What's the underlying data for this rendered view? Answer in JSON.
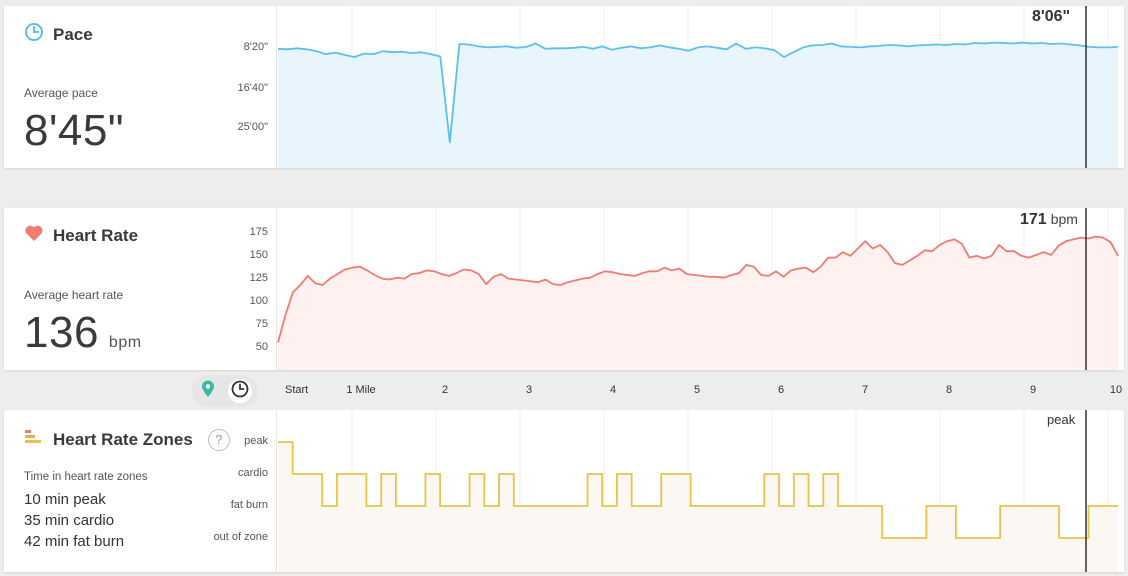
{
  "pace": {
    "title": "Pace",
    "avg_label": "Average pace",
    "avg_value": "8'45\"",
    "yticks": [
      "8'20\"",
      "16'40\"",
      "25'00\""
    ],
    "peak_readout": "8'06\"",
    "series_minutes_per_mile": [
      8.5,
      8.6,
      8.4,
      8.6,
      9.0,
      9.6,
      9.3,
      9.8,
      10.2,
      9.5,
      9.6,
      9.0,
      9.2,
      9.1,
      9.4,
      9.2,
      9.6,
      10.1,
      28.0,
      7.5,
      7.6,
      8.0,
      8.2,
      8.1,
      8.0,
      8.3,
      8.1,
      7.4,
      8.5,
      8.4,
      8.4,
      8.3,
      8.1,
      8.5,
      8.0,
      8.7,
      8.3,
      8.0,
      8.4,
      8.2,
      7.8,
      8.2,
      8.5,
      8.9,
      8.2,
      8.0,
      8.3,
      8.6,
      7.4,
      8.5,
      8.2,
      8.4,
      8.8,
      10.2,
      9.2,
      8.2,
      7.8,
      7.7,
      7.4,
      8.0,
      8.1,
      8.2,
      8.0,
      7.9,
      7.7,
      7.8,
      8.0,
      7.8,
      7.7,
      7.6,
      7.7,
      7.5,
      7.6,
      7.3,
      7.4,
      7.2,
      7.3,
      7.4,
      7.2,
      7.4,
      7.3,
      7.5,
      7.4,
      7.6,
      7.8,
      8.1,
      8.2,
      8.2,
      8.1
    ]
  },
  "heart_rate": {
    "title": "Heart Rate",
    "avg_label": "Average heart rate",
    "avg_value": "136",
    "avg_unit": "bpm",
    "yticks": [
      "175",
      "150",
      "125",
      "100",
      "75",
      "50"
    ],
    "peak_readout": "171",
    "peak_unit": "bpm",
    "series_bpm": [
      55,
      85,
      110,
      118,
      128,
      120,
      118,
      125,
      130,
      135,
      137,
      138,
      134,
      129,
      125,
      124,
      126,
      125,
      130,
      131,
      134,
      133,
      130,
      128,
      131,
      135,
      134,
      130,
      119,
      127,
      130,
      125,
      124,
      123,
      122,
      121,
      124,
      119,
      118,
      121,
      123,
      125,
      126,
      130,
      133,
      132,
      130,
      129,
      128,
      131,
      133,
      133,
      137,
      134,
      136,
      130,
      129,
      128,
      127,
      127,
      126,
      129,
      131,
      140,
      138,
      129,
      128,
      133,
      127,
      134,
      136,
      137,
      132,
      138,
      148,
      148,
      154,
      150,
      158,
      166,
      158,
      162,
      154,
      142,
      140,
      145,
      150,
      156,
      155,
      162,
      166,
      168,
      163,
      148,
      150,
      147,
      150,
      162,
      155,
      155,
      150,
      148,
      151,
      154,
      151,
      161,
      166,
      168,
      170,
      169,
      171,
      170,
      165,
      150
    ]
  },
  "axis": {
    "x_labels": [
      "Start",
      "1 Mile",
      "2",
      "3",
      "4",
      "5",
      "6",
      "7",
      "8",
      "9",
      "10"
    ],
    "toggle_options": [
      "location-pin-icon",
      "clock-icon"
    ]
  },
  "zones": {
    "title": "Heart Rate Zones",
    "yticks": [
      "peak",
      "cardio",
      "fat burn",
      "out of zone"
    ],
    "summary_label": "Time in heart rate zones",
    "summary": [
      "10 min peak",
      "35 min cardio",
      "42 min fat burn"
    ],
    "peak_readout": "peak",
    "series_zone_index": [
      3,
      2,
      2,
      1,
      2,
      2,
      1,
      2,
      1,
      1,
      2,
      1,
      1,
      2,
      1,
      2,
      1,
      1,
      1,
      1,
      1,
      2,
      1,
      2,
      1,
      1,
      2,
      2,
      1,
      1,
      1,
      1,
      1,
      2,
      1,
      2,
      1,
      2,
      1,
      1,
      1,
      0,
      0,
      0,
      1,
      1,
      0,
      0,
      0,
      1,
      1,
      1,
      1,
      0,
      0,
      1,
      1
    ]
  },
  "colors": {
    "pace": "#5bc0eb",
    "pace_fill": "#e9f5fd",
    "hr": "#f07b72",
    "hr_fill": "#fef1ef",
    "zones": "#e8c547",
    "zones_fill": "#fdf7f4",
    "cursor": "#333333",
    "teal": "#3bb6a8"
  }
}
